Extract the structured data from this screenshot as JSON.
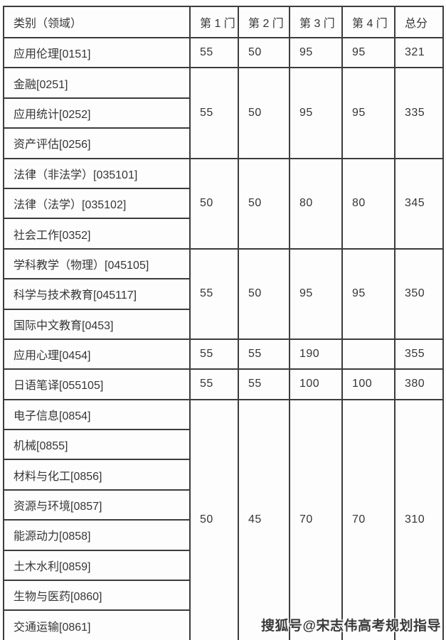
{
  "table": {
    "header": {
      "category_label": "类别（领域）",
      "cols": [
        "第 1 门",
        "第 2 门",
        "第 3 门",
        "第 4 门",
        "总分"
      ]
    },
    "groups": [
      {
        "categories": [
          "应用伦理[0151]"
        ],
        "scores": [
          "55",
          "50",
          "95",
          "95",
          "321"
        ]
      },
      {
        "categories": [
          "金融[0251]",
          "应用统计[0252]",
          "资产评估[0256]"
        ],
        "scores": [
          "55",
          "50",
          "95",
          "95",
          "335"
        ]
      },
      {
        "categories": [
          "法律（非法学）[035101]",
          "法律（法学）[035102]",
          "社会工作[0352]"
        ],
        "scores": [
          "50",
          "50",
          "80",
          "80",
          "345"
        ]
      },
      {
        "categories": [
          "学科教学（物理）[045105]",
          "科学与技术教育[045117]",
          "国际中文教育[0453]"
        ],
        "scores": [
          "55",
          "50",
          "95",
          "95",
          "350"
        ]
      },
      {
        "categories": [
          "应用心理[0454]"
        ],
        "scores": [
          "55",
          "55",
          "190",
          "",
          "355"
        ]
      },
      {
        "categories": [
          "日语笔译[055105]"
        ],
        "scores": [
          "55",
          "55",
          "100",
          "100",
          "380"
        ]
      },
      {
        "categories": [
          "电子信息[0854]",
          "机械[0855]",
          "材料与化工[0856]",
          "资源与环境[0857]",
          "能源动力[0858]",
          "土木水利[0859]",
          "生物与医药[0860]",
          "交通运输[0861]"
        ],
        "scores": [
          "50",
          "45",
          "70",
          "70",
          "310"
        ]
      }
    ]
  },
  "watermark": "搜狐号@宋志伟高考规划指导",
  "colors": {
    "border_solid": "#3c3c3c",
    "border_dashed": "#b3b3b3",
    "text": "#353535",
    "background": "#fdfdfd"
  }
}
